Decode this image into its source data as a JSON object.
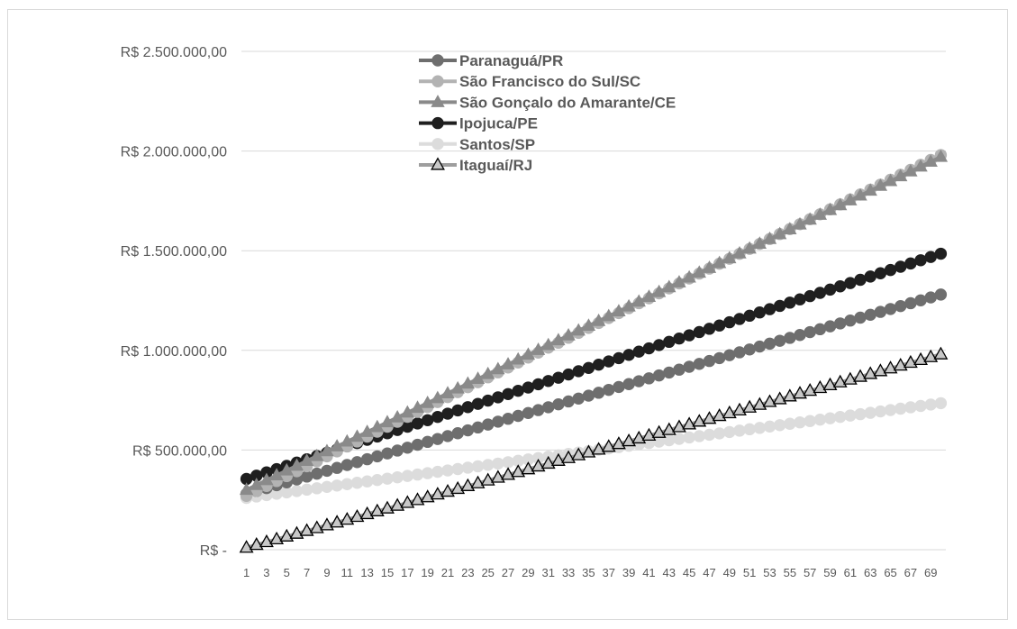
{
  "chart_data": {
    "type": "line",
    "title": "",
    "xlabel": "",
    "ylabel": "",
    "x_start": 1,
    "x_end": 70,
    "x_tick_labels": [
      "1",
      "3",
      "5",
      "7",
      "9",
      "11",
      "13",
      "15",
      "17",
      "19",
      "21",
      "23",
      "25",
      "27",
      "29",
      "31",
      "33",
      "35",
      "37",
      "39",
      "41",
      "43",
      "45",
      "47",
      "49",
      "51",
      "53",
      "55",
      "57",
      "59",
      "61",
      "63",
      "65",
      "67",
      "69"
    ],
    "y_tick_values": [
      0,
      500000,
      1000000,
      1500000,
      2000000,
      2500000
    ],
    "y_tick_labels": [
      "R$ -",
      "R$ 500.000,00",
      "R$ 1.000.000,00",
      "R$ 1.500.000,00",
      "R$ 2.000.000,00",
      "R$ 2.500.000,00"
    ],
    "ylim": [
      0,
      2500000
    ],
    "grid": "horizontal",
    "legend_position": "top-center",
    "series": [
      {
        "name": "Paranaguá/PR",
        "start": 280000,
        "end": 1280000,
        "line_color": "#6e6e6e",
        "marker": "circle",
        "marker_fill": "#6e6e6e",
        "marker_stroke": "#6e6e6e"
      },
      {
        "name": "São Francisco do Sul/SC",
        "start": 270000,
        "end": 1980000,
        "line_color": "#b3b3b3",
        "marker": "circle",
        "marker_fill": "#b3b3b3",
        "marker_stroke": "#b3b3b3"
      },
      {
        "name": "São Gonçalo do Amarante/CE",
        "start": 300000,
        "end": 1970000,
        "line_color": "#8a8a8a",
        "marker": "triangle",
        "marker_fill": "#8a8a8a",
        "marker_stroke": "#8a8a8a"
      },
      {
        "name": "Ipojuca/PE",
        "start": 355000,
        "end": 1485000,
        "line_color": "#1f1f1f",
        "marker": "circle",
        "marker_fill": "#1f1f1f",
        "marker_stroke": "#1f1f1f"
      },
      {
        "name": "Santos/SP",
        "start": 260000,
        "end": 735000,
        "line_color": "#dcdcdc",
        "marker": "circle",
        "marker_fill": "#dcdcdc",
        "marker_stroke": "#dcdcdc"
      },
      {
        "name": "Itaguaí/RJ",
        "start": 10000,
        "end": 980000,
        "line_color": "#9e9e9e",
        "marker": "triangle-open",
        "marker_fill": "#c8c8c8",
        "marker_stroke": "#000000"
      }
    ]
  }
}
